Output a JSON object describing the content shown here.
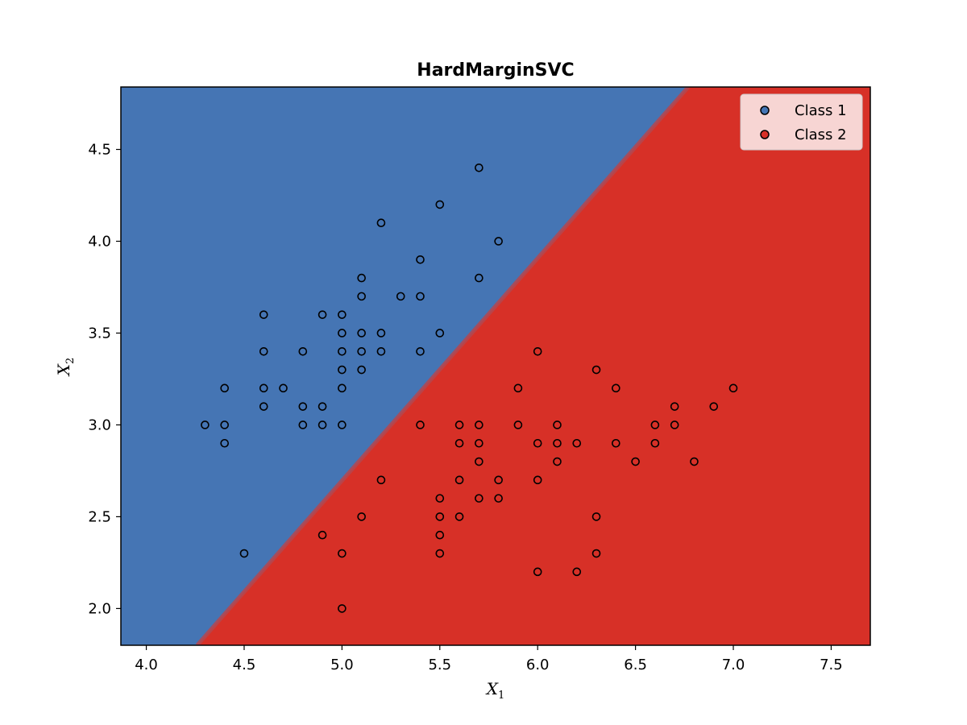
{
  "chart_data": {
    "type": "scatter",
    "title": "HardMarginSVC",
    "xlabel": {
      "base": "X",
      "sub": "1"
    },
    "ylabel": {
      "base": "X",
      "sub": "2"
    },
    "xlim": [
      3.87,
      7.7
    ],
    "ylim": [
      1.8,
      4.84
    ],
    "xticks": [
      4.0,
      4.5,
      5.0,
      5.5,
      6.0,
      6.5,
      7.0,
      7.5
    ],
    "yticks": [
      2.0,
      2.5,
      3.0,
      3.5,
      4.0,
      4.5
    ],
    "xtick_labels": [
      "4.0",
      "4.5",
      "5.0",
      "5.5",
      "6.0",
      "6.5",
      "7.0",
      "7.5"
    ],
    "ytick_labels": [
      "2.0",
      "2.5",
      "3.0",
      "3.5",
      "4.0",
      "4.5"
    ],
    "decision_boundary": {
      "points": [
        [
          4.26,
          1.8
        ],
        [
          6.77,
          4.84
        ]
      ],
      "region_colors": {
        "class_1": "#4575b4",
        "class_2": "#d73027"
      },
      "boundary_color": "#b5474f"
    },
    "legend": {
      "position": "top-right",
      "entries": [
        {
          "label": "Class 1",
          "color": "#4575b4"
        },
        {
          "label": "Class 2",
          "color": "#d73027"
        }
      ]
    },
    "series": [
      {
        "name": "Class 1",
        "color": "#4575b4",
        "points": [
          [
            4.3,
            3.0
          ],
          [
            4.4,
            2.9
          ],
          [
            4.4,
            3.0
          ],
          [
            4.4,
            3.2
          ],
          [
            4.5,
            2.3
          ],
          [
            4.6,
            3.1
          ],
          [
            4.6,
            3.2
          ],
          [
            4.6,
            3.4
          ],
          [
            4.6,
            3.6
          ],
          [
            4.7,
            3.2
          ],
          [
            4.8,
            3.0
          ],
          [
            4.8,
            3.1
          ],
          [
            4.8,
            3.4
          ],
          [
            4.9,
            3.0
          ],
          [
            4.9,
            3.1
          ],
          [
            4.9,
            3.6
          ],
          [
            5.0,
            3.0
          ],
          [
            5.0,
            3.2
          ],
          [
            5.0,
            3.3
          ],
          [
            5.0,
            3.4
          ],
          [
            5.0,
            3.5
          ],
          [
            5.0,
            3.6
          ],
          [
            5.1,
            3.3
          ],
          [
            5.1,
            3.4
          ],
          [
            5.1,
            3.5
          ],
          [
            5.1,
            3.7
          ],
          [
            5.1,
            3.8
          ],
          [
            5.2,
            3.4
          ],
          [
            5.2,
            3.5
          ],
          [
            5.2,
            4.1
          ],
          [
            5.3,
            3.7
          ],
          [
            5.4,
            3.4
          ],
          [
            5.4,
            3.7
          ],
          [
            5.4,
            3.9
          ],
          [
            5.5,
            3.5
          ],
          [
            5.5,
            4.2
          ],
          [
            5.7,
            3.8
          ],
          [
            5.7,
            4.4
          ],
          [
            5.8,
            4.0
          ]
        ]
      },
      {
        "name": "Class 2",
        "color": "#d73027",
        "points": [
          [
            4.9,
            2.4
          ],
          [
            5.0,
            2.0
          ],
          [
            5.0,
            2.3
          ],
          [
            5.1,
            2.5
          ],
          [
            5.2,
            2.7
          ],
          [
            5.4,
            3.0
          ],
          [
            5.5,
            2.3
          ],
          [
            5.5,
            2.4
          ],
          [
            5.5,
            2.5
          ],
          [
            5.5,
            2.6
          ],
          [
            5.6,
            2.5
          ],
          [
            5.6,
            2.7
          ],
          [
            5.6,
            2.9
          ],
          [
            5.6,
            3.0
          ],
          [
            5.7,
            2.6
          ],
          [
            5.7,
            2.8
          ],
          [
            5.7,
            2.9
          ],
          [
            5.7,
            3.0
          ],
          [
            5.8,
            2.6
          ],
          [
            5.8,
            2.7
          ],
          [
            5.9,
            3.0
          ],
          [
            5.9,
            3.2
          ],
          [
            6.0,
            2.2
          ],
          [
            6.0,
            2.7
          ],
          [
            6.0,
            2.9
          ],
          [
            6.0,
            3.4
          ],
          [
            6.1,
            2.8
          ],
          [
            6.1,
            2.9
          ],
          [
            6.1,
            3.0
          ],
          [
            6.2,
            2.2
          ],
          [
            6.2,
            2.9
          ],
          [
            6.3,
            2.3
          ],
          [
            6.3,
            2.5
          ],
          [
            6.3,
            3.3
          ],
          [
            6.4,
            2.9
          ],
          [
            6.4,
            3.2
          ],
          [
            6.5,
            2.8
          ],
          [
            6.6,
            2.9
          ],
          [
            6.6,
            3.0
          ],
          [
            6.7,
            3.0
          ],
          [
            6.7,
            3.1
          ],
          [
            6.8,
            2.8
          ],
          [
            6.9,
            3.1
          ],
          [
            7.0,
            3.2
          ]
        ]
      }
    ],
    "grid": false
  }
}
